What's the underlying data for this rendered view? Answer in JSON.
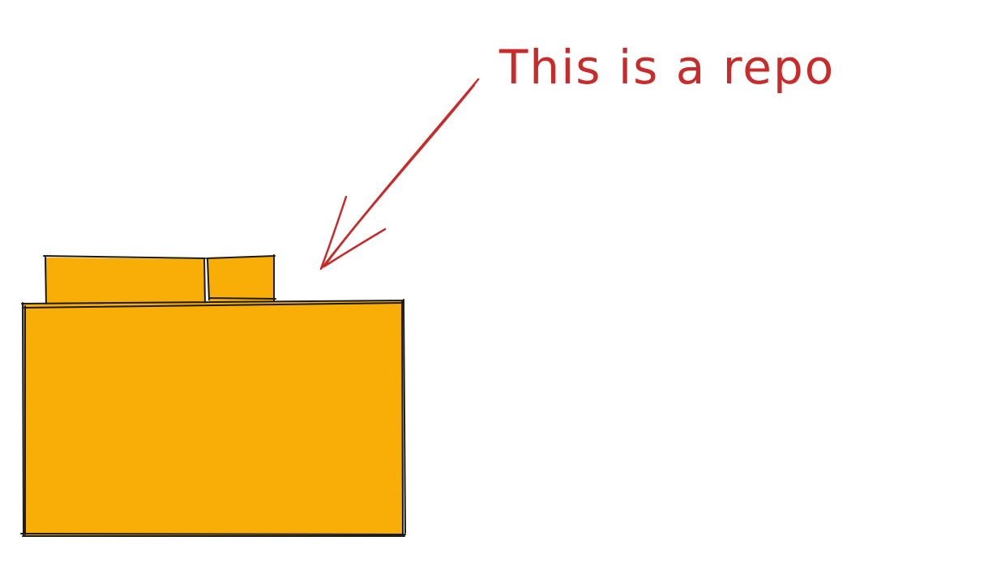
{
  "annotation": {
    "text": "This is a repo"
  },
  "colors": {
    "folder_fill": "#F9AE07",
    "outline": "#1a1a1a",
    "annotation": "#C92A2A",
    "background": "#FFFFFF"
  },
  "icons": {
    "folder": "folder-icon",
    "arrow": "arrow-icon"
  }
}
